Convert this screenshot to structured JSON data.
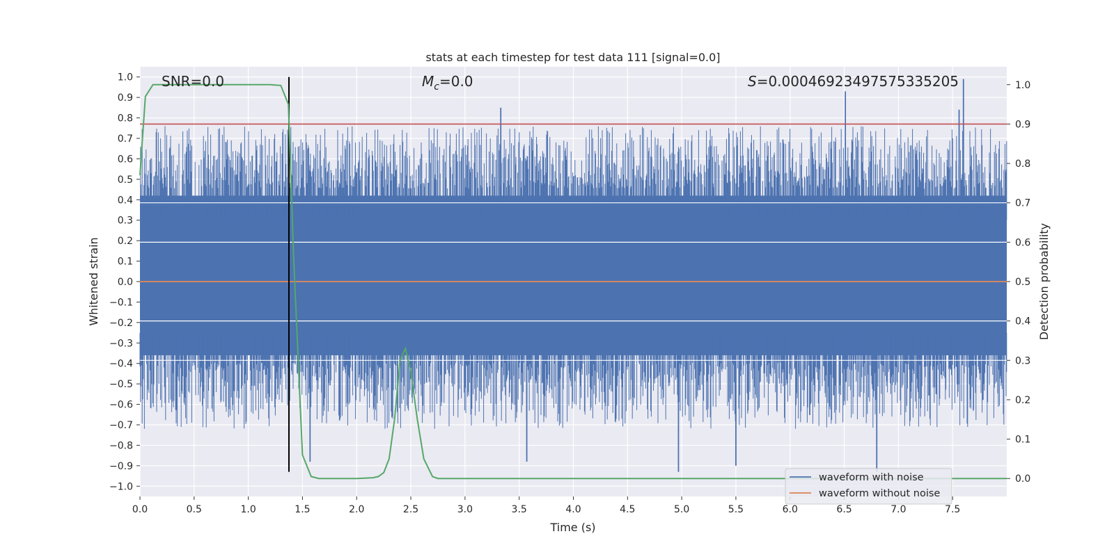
{
  "chart_data": {
    "type": "line",
    "title": "stats at each timestep for test data 111 [signal=0.0]",
    "xlabel": "Time (s)",
    "ylabel": "Whitened strain",
    "y2label": "Detection probability",
    "xlim": [
      0.0,
      8.0
    ],
    "ylim": [
      -1.05,
      1.05
    ],
    "y2lim": [
      -0.0455,
      1.0455
    ],
    "x_ticks": [
      "0.0",
      "0.5",
      "1.0",
      "1.5",
      "2.0",
      "2.5",
      "3.0",
      "3.5",
      "4.0",
      "4.5",
      "5.0",
      "5.5",
      "6.0",
      "6.5",
      "7.0",
      "7.5"
    ],
    "y_ticks": [
      "1.0",
      "0.9",
      "0.8",
      "0.7",
      "0.6",
      "0.5",
      "0.4",
      "0.3",
      "0.2",
      "0.1",
      "0.0",
      "−0.1",
      "−0.2",
      "−0.3",
      "−0.4",
      "−0.5",
      "−0.6",
      "−0.7",
      "−0.8",
      "−0.9",
      "−1.0"
    ],
    "y2_ticks": [
      "1.0",
      "0.9",
      "0.8",
      "0.7",
      "0.6",
      "0.5",
      "0.4",
      "0.3",
      "0.2",
      "0.1",
      "0.0"
    ],
    "annotations": {
      "snr": "SNR=0.0",
      "mc_symbol": "M",
      "mc_sub": "c",
      "mc_value": "=0.0",
      "s_symbol": "S",
      "s_value": "=0.00046923497575335205"
    },
    "grid": true,
    "legend_position": "lower right",
    "series": [
      {
        "name": "waveform with noise",
        "axis": "left",
        "color": "#4c72b0",
        "note": "dense whitened noise between about -0.5 and 0.5 with spikes",
        "spikes": [
          {
            "x": 3.33,
            "y": 0.85
          },
          {
            "x": 6.51,
            "y": 0.93
          },
          {
            "x": 7.56,
            "y": 0.84
          },
          {
            "x": 7.6,
            "y": 0.99
          },
          {
            "x": 4.97,
            "y": -0.93
          },
          {
            "x": 5.5,
            "y": -0.9
          },
          {
            "x": 6.8,
            "y": -0.93
          },
          {
            "x": 3.57,
            "y": -0.88
          },
          {
            "x": 1.57,
            "y": -0.88
          }
        ]
      },
      {
        "name": "waveform without noise",
        "axis": "left",
        "color": "#dd8452",
        "x": [
          0.0,
          8.0
        ],
        "values": [
          0.0,
          0.0
        ]
      },
      {
        "name": "detection probability",
        "axis": "right",
        "color": "#55a868",
        "x": [
          0.0,
          0.05,
          0.12,
          0.2,
          0.4,
          0.8,
          1.2,
          1.3,
          1.37,
          1.42,
          1.5,
          1.58,
          1.65,
          2.0,
          2.15,
          2.2,
          2.25,
          2.3,
          2.35,
          2.4,
          2.45,
          2.5,
          2.56,
          2.62,
          2.7,
          2.75,
          8.0
        ],
        "values": [
          0.77,
          0.97,
          1.0,
          1.0,
          1.0,
          1.0,
          1.0,
          0.998,
          0.95,
          0.55,
          0.06,
          0.005,
          0.0,
          0.0,
          0.002,
          0.005,
          0.015,
          0.05,
          0.15,
          0.3,
          0.33,
          0.27,
          0.15,
          0.05,
          0.005,
          0.0,
          0.0
        ]
      }
    ],
    "reference_lines": [
      {
        "axis": "right",
        "y": 0.9,
        "color": "#c44e52"
      },
      {
        "axis": "left",
        "x": 1.375,
        "y_from": -0.93,
        "y_to": 1.0,
        "color": "#000000"
      }
    ],
    "legend": [
      {
        "label": "waveform with noise",
        "color": "#4c72b0"
      },
      {
        "label": "waveform without noise",
        "color": "#dd8452"
      }
    ]
  }
}
